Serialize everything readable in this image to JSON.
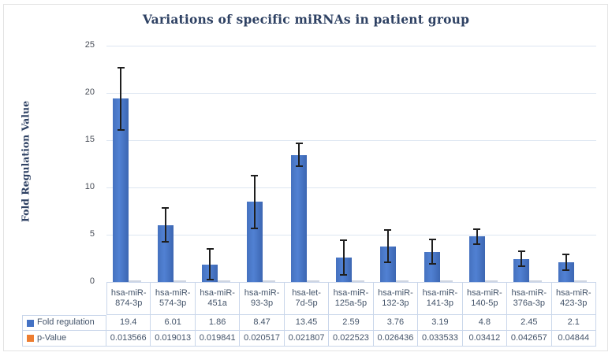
{
  "chart_data": {
    "type": "bar",
    "title": "Variations of specific miRNAs in patient group",
    "xlabel": "",
    "ylabel": "Fold Regulation Value",
    "ylim": [
      0,
      25
    ],
    "ytick_step": 5,
    "ytick_labels": [
      "0",
      "5",
      "10",
      "15",
      "20",
      "25"
    ],
    "grid": true,
    "legend_position": "table-left-column",
    "categories": [
      "hsa-miR-874-3p",
      "hsa-miR-574-3p",
      "hsa-miR-451a",
      "hsa-miR-93-3p",
      "hsa-let-7d-5p",
      "hsa-miR-125a-5p",
      "hsa-miR-132-3p",
      "hsa-miR-141-3p",
      "hsa-miR-140-5p",
      "hsa-miR-376a-3p",
      "hsa-miR-423-3p"
    ],
    "category_labels_2line": [
      [
        "hsa-miR-",
        "874-3p"
      ],
      [
        "hsa-miR-",
        "574-3p"
      ],
      [
        "hsa-miR-",
        "451a"
      ],
      [
        "hsa-miR-",
        "93-3p"
      ],
      [
        "hsa-let-",
        "7d-5p"
      ],
      [
        "hsa-miR-",
        "125a-5p"
      ],
      [
        "hsa-miR-",
        "132-3p"
      ],
      [
        "hsa-miR-",
        "141-3p"
      ],
      [
        "hsa-miR-",
        "140-5p"
      ],
      [
        "hsa-miR-",
        "376a-3p"
      ],
      [
        "hsa-miR-",
        "423-3p"
      ]
    ],
    "series": [
      {
        "name": "Fold regulation",
        "color": "#4472C4",
        "values": [
          19.4,
          6.01,
          1.86,
          8.47,
          13.45,
          2.59,
          3.76,
          3.19,
          4.8,
          2.45,
          2.1
        ],
        "value_labels": [
          "19.4",
          "6.01",
          "1.86",
          "8.47",
          "13.45",
          "2.59",
          "3.76",
          "3.19",
          "4.8",
          "2.45",
          "2.1"
        ],
        "error_bars": [
          3.3,
          1.8,
          1.6,
          2.8,
          1.2,
          1.8,
          1.7,
          1.3,
          0.8,
          0.8,
          0.85
        ]
      },
      {
        "name": "p-Value",
        "color": "#ED7D31",
        "values": [
          0.013566,
          0.019013,
          0.019841,
          0.020517,
          0.021807,
          0.022523,
          0.026436,
          0.033533,
          0.03412,
          0.042657,
          0.04844
        ],
        "value_labels": [
          "0.013566",
          "0.019013",
          "0.019841",
          "0.020517",
          "0.021807",
          "0.022523",
          "0.026436",
          "0.033533",
          "0.03412",
          "0.042657",
          "0.04844"
        ]
      }
    ]
  },
  "colors": {
    "title_text": "#2e4163",
    "table_text": "#44546a",
    "table_border": "#c9d6ea",
    "gridline": "#dde6f1",
    "bar_fill": "#4472C4",
    "p_value_swatch": "#ED7D31",
    "p_value_bar_visible": "#ced5e2",
    "error_bar": "#1f1f1f",
    "frame_border": "#e3e3e3"
  }
}
